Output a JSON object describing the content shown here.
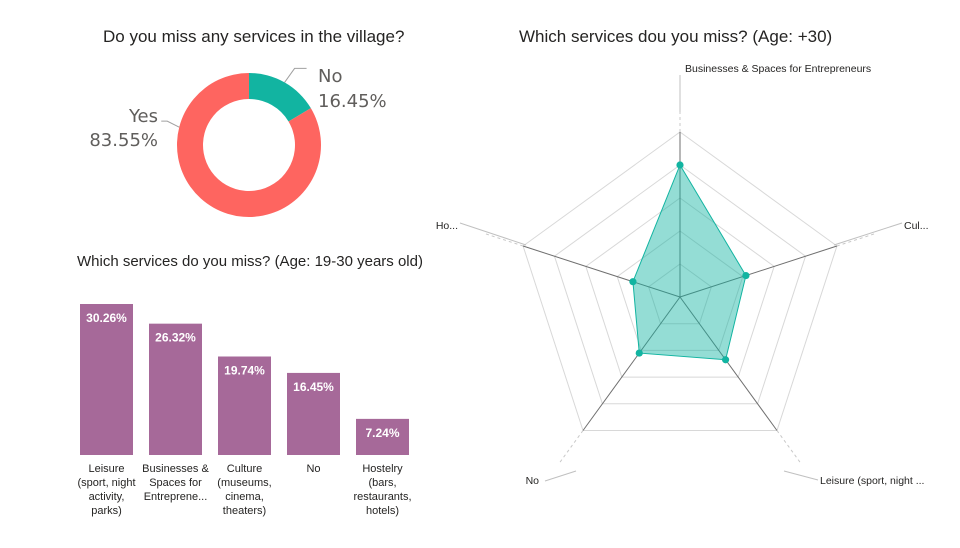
{
  "chart_data": [
    {
      "type": "pie",
      "variant": "donut",
      "title": "Do you miss any services in the village?",
      "slices": [
        {
          "label": "No",
          "value": 16.45,
          "value_label": "16.45%",
          "color": "#12b4a1"
        },
        {
          "label": "Yes",
          "value": 83.55,
          "value_label": "83.55%",
          "color": "#fe6560"
        }
      ]
    },
    {
      "type": "bar",
      "title": "Which services do you miss? (Age: 19-30 years old)",
      "categories": [
        [
          "Leisure",
          "(sport, night",
          "activity,",
          "parks)"
        ],
        [
          "Businesses &",
          "Spaces for",
          "Entreprene..."
        ],
        [
          "Culture",
          "(museums,",
          "cinema,",
          "theaters)"
        ],
        [
          "No"
        ],
        [
          "Hostelry",
          "(bars,",
          "restaurants,",
          "hotels)"
        ]
      ],
      "values": [
        30.26,
        26.32,
        19.74,
        16.45,
        7.24
      ],
      "value_labels": [
        "30.26%",
        "26.32%",
        "19.74%",
        "16.45%",
        "7.24%"
      ],
      "color": "#a66999"
    },
    {
      "type": "radar",
      "title": "Which services dou you miss? (Age: +30)",
      "axes": [
        "Businesses & Spaces for Entrepreneurs",
        "Cul...",
        "Leisure (sport, night ...",
        "No",
        "Ho..."
      ],
      "values": [
        0.8,
        0.42,
        0.47,
        0.42,
        0.3
      ],
      "rmax": 1,
      "rings": 5,
      "fill_color": "#12b4a1",
      "grid_color": "#d8d8d8"
    }
  ]
}
